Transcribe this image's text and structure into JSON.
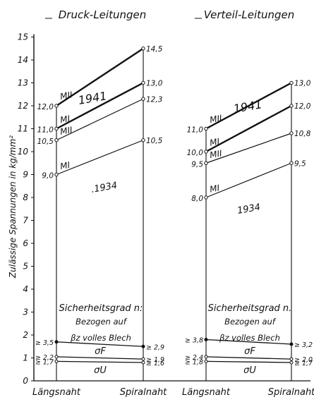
{
  "chart_data": [
    {
      "type": "line",
      "title": "Druck-Leitungen",
      "ylabel": "Zulässige Spannungen in kg/mm²",
      "categories": [
        "Längsnaht",
        "Spiralnaht"
      ],
      "ylim": [
        0,
        15
      ],
      "y_ticks": [
        0,
        1,
        2,
        3,
        4,
        5,
        6,
        7,
        8,
        9,
        10,
        11,
        12,
        13,
        14,
        15
      ],
      "series": [
        {
          "name": "MII",
          "group": "1941",
          "values": [
            12.0,
            14.5
          ],
          "left_label": "12,0",
          "right_label": "14,5"
        },
        {
          "name": "MI",
          "group": "1941",
          "values": [
            11.0,
            13.0
          ],
          "left_label": "11,0",
          "right_label": "13,0"
        },
        {
          "name": "MII",
          "group": "1934",
          "values": [
            10.5,
            12.3
          ],
          "left_label": "10,5",
          "right_label": "12,3"
        },
        {
          "name": "MI",
          "group": "1934",
          "values": [
            9.0,
            10.5
          ],
          "left_label": "9,0",
          "right_label": "10,5"
        }
      ],
      "year_labels": [
        "1941",
        ".1934"
      ],
      "safety": {
        "title": "Sicherheitsgrad n:",
        "line2": "Bezogen auf",
        "line3": "βz volles Blech",
        "series": [
          {
            "name": "βz volles Blech",
            "values": [
              1.7,
              1.5
            ],
            "left_label": "≥ 3,5",
            "right_label": "≥ 2,9"
          },
          {
            "name": "σF",
            "values": [
              1.05,
              0.95
            ],
            "left_label": "≥ 2,2",
            "right_label": "≥ 1,9"
          },
          {
            "name": "σU",
            "values": [
              0.85,
              0.8
            ],
            "left_label": "≥ 1,7",
            "right_label": "≥ 1,6"
          }
        ],
        "sigma_f_label": "σF",
        "sigma_u_label": "σU"
      }
    },
    {
      "type": "line",
      "title": "Verteil-Leitungen",
      "categories": [
        "Längsnaht",
        "Spiralnaht"
      ],
      "ylim": [
        0,
        15
      ],
      "series": [
        {
          "name": "MII",
          "group": "1941",
          "values": [
            11.0,
            13.0
          ],
          "left_label": "11,0",
          "right_label": "13,0"
        },
        {
          "name": "MI",
          "group": "1941",
          "values": [
            10.0,
            12.0
          ],
          "left_label": "10,0",
          "right_label": "12,0"
        },
        {
          "name": "MII",
          "group": "1934",
          "values": [
            9.5,
            10.8
          ],
          "left_label": "9,5",
          "right_label": "10,8"
        },
        {
          "name": "MI",
          "group": "1934",
          "values": [
            8.0,
            9.5
          ],
          "left_label": "8,0",
          "right_label": "9,5"
        }
      ],
      "year_labels": [
        "1941",
        "1934"
      ],
      "safety": {
        "title": "Sicherheitsgrad n.",
        "line2": "Bezogen auf",
        "line3": "βz volles Blech",
        "series": [
          {
            "name": "βz volles Blech",
            "values": [
              1.8,
              1.6
            ],
            "left_label": "≥ 3,8",
            "right_label": "≥ 3,2"
          },
          {
            "name": "σF",
            "values": [
              1.05,
              0.95
            ],
            "left_label": "≥ 2,4",
            "right_label": "≥ 2,0"
          },
          {
            "name": "σU",
            "values": [
              0.85,
              0.8
            ],
            "left_label": "≥ 1,8",
            "right_label": "≥ 1,7"
          }
        ],
        "sigma_f_label": "σF",
        "sigma_u_label": "σU"
      }
    }
  ]
}
